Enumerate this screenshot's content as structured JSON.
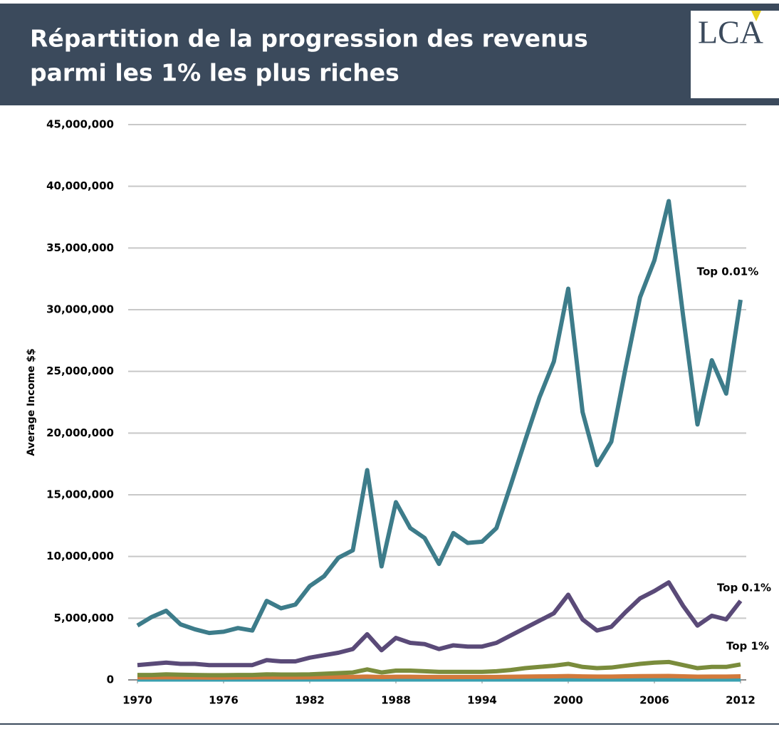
{
  "header": {
    "title": [
      "Répartition de la progression des revenus",
      "parmi les 1% les plus riches"
    ],
    "logo": "LCA"
  },
  "chart_data": {
    "type": "line",
    "y_label": "Average Income $$",
    "x": [
      1970,
      1971,
      1972,
      1973,
      1974,
      1975,
      1976,
      1977,
      1978,
      1979,
      1980,
      1981,
      1982,
      1983,
      1984,
      1985,
      1986,
      1987,
      1988,
      1989,
      1990,
      1991,
      1992,
      1993,
      1994,
      1995,
      1996,
      1997,
      1998,
      1999,
      2000,
      2001,
      2002,
      2003,
      2004,
      2005,
      2006,
      2007,
      2008,
      2009,
      2010,
      2011,
      2012
    ],
    "xlim": [
      1970,
      2012
    ],
    "xticks": [
      1970,
      1976,
      1982,
      1988,
      1994,
      2000,
      2006,
      2012
    ],
    "ylim": [
      0,
      45000000
    ],
    "yticks": [
      0,
      {
        "value": 5000000,
        "label": "5,000,000"
      },
      {
        "value": 10000000,
        "label": "10,000,000"
      },
      {
        "value": 15000000,
        "label": "15,000,000"
      },
      {
        "value": 20000000,
        "label": "20,000,000"
      },
      {
        "value": 25000000,
        "label": "25,000,000"
      },
      {
        "value": 30000000,
        "label": "30,000,000"
      },
      {
        "value": 35000000,
        "label": "35,000,000"
      },
      {
        "value": 40000000,
        "label": "40,000,000"
      },
      {
        "value": 45000000,
        "label": "45,000,000"
      }
    ],
    "grid": true,
    "series": [
      {
        "name": "Top 0.01%",
        "color": "#3d7c8a",
        "values": [
          4400000,
          5100000,
          5600000,
          4500000,
          4100000,
          3800000,
          3900000,
          4200000,
          4000000,
          6400000,
          5800000,
          6100000,
          7600000,
          8400000,
          9900000,
          10500000,
          17000000,
          9200000,
          14400000,
          12300000,
          11500000,
          9400000,
          11900000,
          11100000,
          11200000,
          12300000,
          15800000,
          19400000,
          22900000,
          25800000,
          31700000,
          21700000,
          17400000,
          19300000,
          25300000,
          31000000,
          34000000,
          38800000,
          29500000,
          20700000,
          25900000,
          23200000,
          30800000
        ]
      },
      {
        "name": "Top 0.1%",
        "color": "#5a4a78",
        "values": [
          1200000,
          1300000,
          1400000,
          1300000,
          1300000,
          1200000,
          1200000,
          1200000,
          1200000,
          1600000,
          1500000,
          1500000,
          1800000,
          2000000,
          2200000,
          2500000,
          3700000,
          2400000,
          3400000,
          3000000,
          2900000,
          2500000,
          2800000,
          2700000,
          2700000,
          3000000,
          3600000,
          4200000,
          4800000,
          5400000,
          6900000,
          4900000,
          4000000,
          4300000,
          5500000,
          6600000,
          7200000,
          7900000,
          6000000,
          4400000,
          5200000,
          4900000,
          6400000
        ]
      },
      {
        "name": "Top 1%",
        "color": "#7a8c3c",
        "values": [
          400000,
          400000,
          450000,
          420000,
          400000,
          380000,
          380000,
          400000,
          400000,
          450000,
          430000,
          430000,
          450000,
          500000,
          550000,
          600000,
          850000,
          600000,
          750000,
          750000,
          700000,
          650000,
          650000,
          650000,
          650000,
          700000,
          800000,
          950000,
          1050000,
          1150000,
          1300000,
          1050000,
          950000,
          1000000,
          1150000,
          1300000,
          1400000,
          1450000,
          1200000,
          950000,
          1050000,
          1050000,
          1250000
        ]
      },
      {
        "color": "#d27a3c",
        "values": [
          200000,
          200000,
          210000,
          200000,
          200000,
          190000,
          190000,
          200000,
          200000,
          210000,
          200000,
          200000,
          210000,
          220000,
          230000,
          240000,
          270000,
          230000,
          250000,
          250000,
          240000,
          230000,
          230000,
          230000,
          230000,
          240000,
          250000,
          270000,
          280000,
          290000,
          310000,
          280000,
          270000,
          270000,
          290000,
          300000,
          310000,
          320000,
          290000,
          260000,
          270000,
          270000,
          290000
        ]
      },
      {
        "color": "#3aa0b0",
        "values": [
          30000,
          30000,
          30000,
          30000,
          30000,
          30000,
          30000,
          30000,
          30000,
          30000,
          30000,
          30000,
          30000,
          30000,
          30000,
          30000,
          30000,
          30000,
          30000,
          30000,
          30000,
          30000,
          30000,
          30000,
          30000,
          30000,
          30000,
          30000,
          30000,
          30000,
          30000,
          30000,
          30000,
          30000,
          30000,
          30000,
          30000,
          30000,
          30000,
          30000,
          30000,
          30000,
          30000
        ]
      }
    ]
  }
}
